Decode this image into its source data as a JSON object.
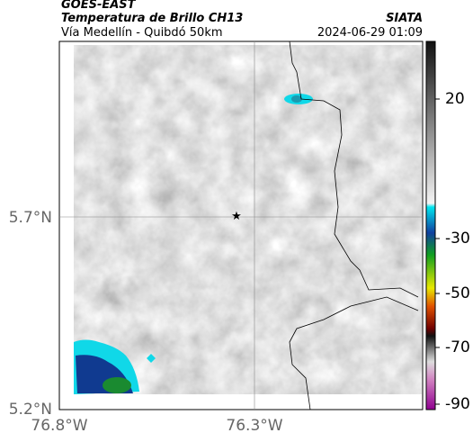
{
  "header": {
    "source": "GOES-EAST",
    "title": "Temperatura de Brillo CH13",
    "subtitle": "Vía Medellín - Quibdó 50km",
    "agency": "SIATA",
    "datetime": "2024-06-29 01:09"
  },
  "map": {
    "lat_labels": [
      "5.7°N",
      "5.2°N"
    ],
    "lon_labels": [
      "76.8°W",
      "76.3°W"
    ]
  },
  "colorbar": {
    "labels": [
      "20",
      "-30",
      "-50",
      "-70",
      "-90"
    ]
  }
}
